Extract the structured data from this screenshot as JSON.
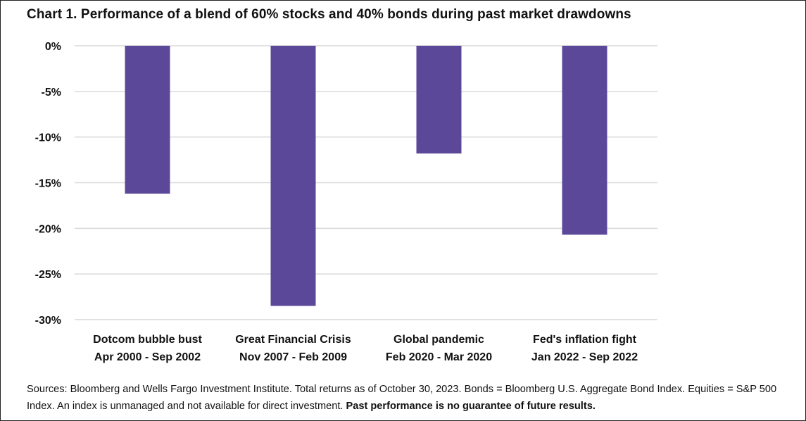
{
  "chart_data": {
    "type": "bar",
    "title": "Chart 1. Performance of a blend of 60% stocks and 40% bonds during past market drawdowns",
    "categories": [
      [
        "Dotcom bubble bust",
        "Apr 2000 - Sep 2002"
      ],
      [
        "Great Financial Crisis",
        "Nov 2007 - Feb 2009"
      ],
      [
        "Global pandemic",
        "Feb 2020 - Mar 2020"
      ],
      [
        "Fed's inflation fight",
        "Jan 2022 - Sep 2022"
      ]
    ],
    "values": [
      -16.2,
      -28.5,
      -11.8,
      -20.7
    ],
    "ylim": [
      -30,
      0
    ],
    "yticks": [
      0,
      -5,
      -10,
      -15,
      -20,
      -25,
      -30
    ],
    "ytick_labels": [
      "0%",
      "-5%",
      "-10%",
      "-15%",
      "-20%",
      "-25%",
      "-30%"
    ],
    "grid": true,
    "bar_color": "#5c4899",
    "grid_color": "#d9d9d9"
  },
  "footnote": {
    "text": "Sources: Bloomberg and Wells Fargo Investment Institute. Total returns as of October 30, 2023. Bonds = Bloomberg U.S. Aggregate Bond Index. Equities = S&P 500 Index. An index is unmanaged and not available for direct investment. ",
    "bold": "Past performance is no guarantee of future results."
  }
}
